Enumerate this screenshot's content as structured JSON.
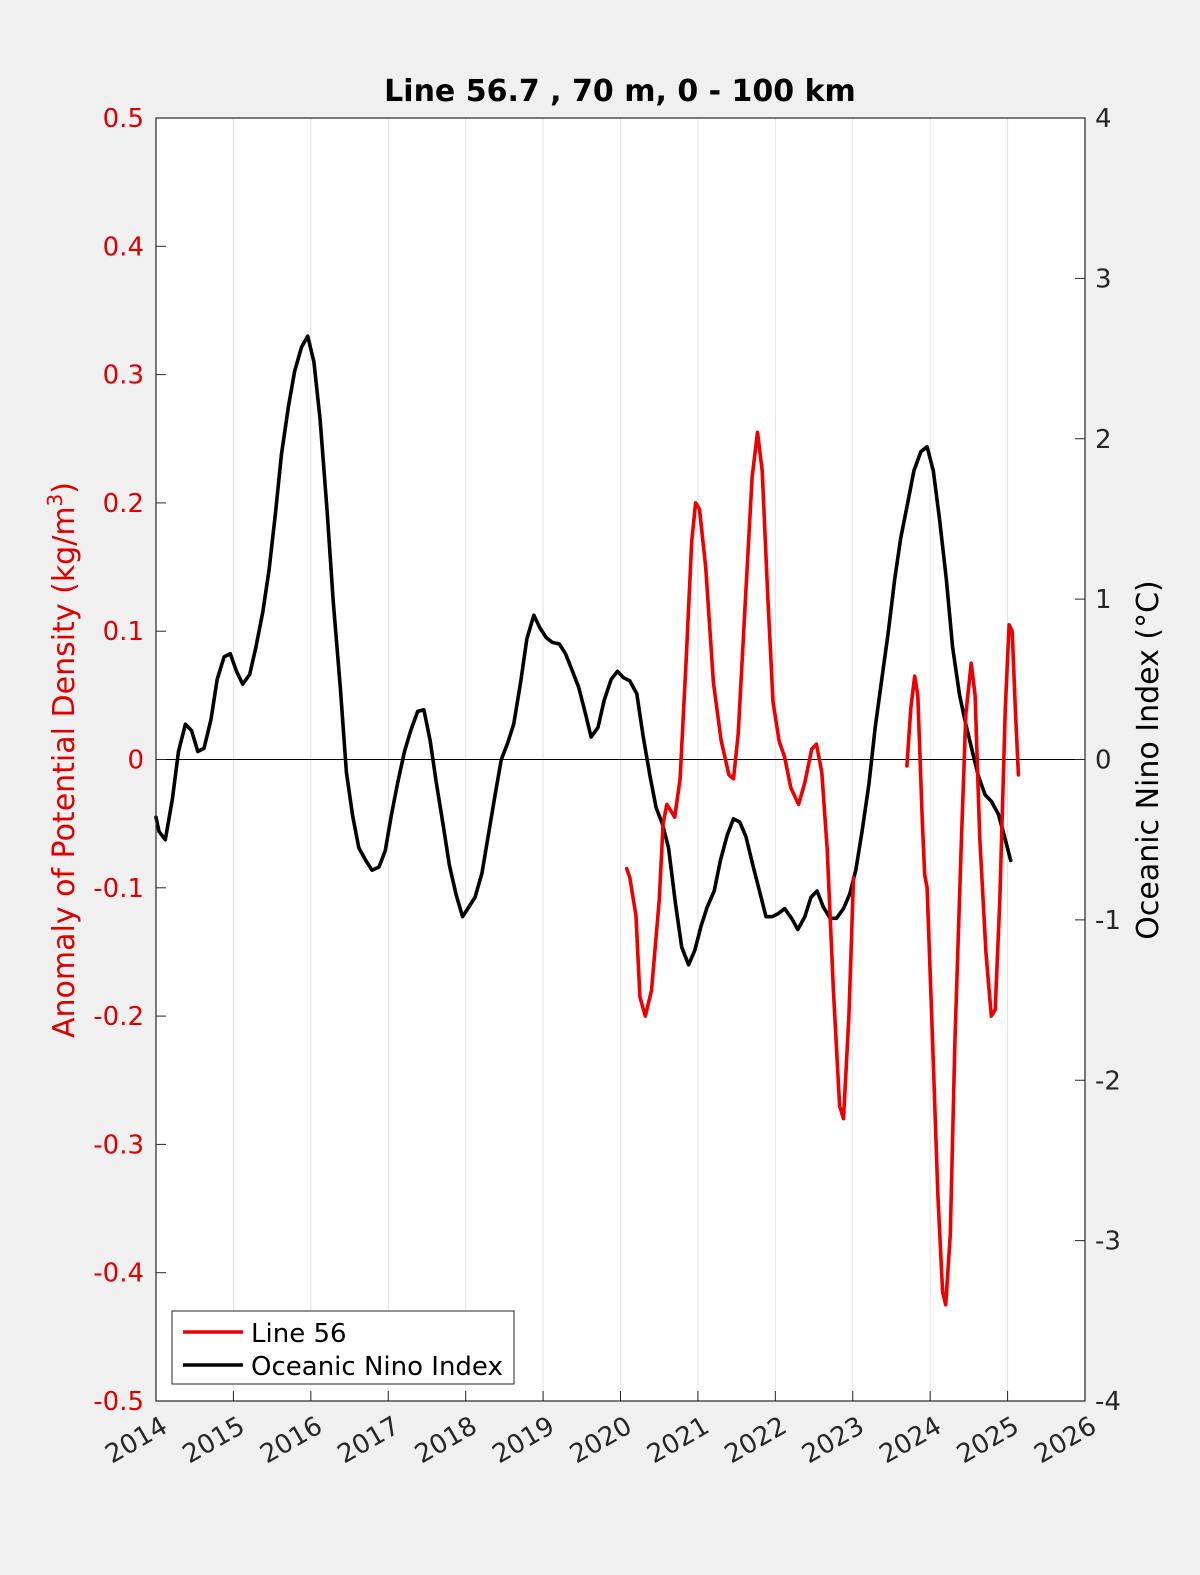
{
  "chart_data": {
    "type": "line",
    "title": "Line 56.7 , 70 m, 0 - 100 km",
    "xlabel": "",
    "ylabel_left": "Anomaly of Potential Density (kg/m",
    "ylabel_left_sup": "3",
    "ylabel_left_close": ")",
    "ylabel_right": "Oceanic Nino Index (°C)",
    "xlim": [
      2014,
      2026
    ],
    "ylim_left": [
      -0.5,
      0.5
    ],
    "ylim_right": [
      -4,
      4
    ],
    "grid": "vertical",
    "legend_position": "bottom-left",
    "x_ticks": [
      "2014",
      "2015",
      "2016",
      "2017",
      "2018",
      "2019",
      "2020",
      "2021",
      "2022",
      "2023",
      "2024",
      "2025",
      "2026"
    ],
    "y_left_ticks": [
      "-0.5",
      "-0.4",
      "-0.3",
      "-0.2",
      "-0.1",
      "0",
      "0.1",
      "0.2",
      "0.3",
      "0.4",
      "0.5"
    ],
    "y_right_ticks": [
      "-4",
      "-3",
      "-2",
      "-1",
      "0",
      "1",
      "2",
      "3",
      "4"
    ],
    "colors": {
      "line56": "#ee0000",
      "oni": "#000000",
      "left_axis": "#dd0000"
    },
    "series": [
      {
        "name": "Line 56",
        "axis": "left",
        "segments": [
          [
            [
              2020.08,
              -0.085
            ],
            [
              2020.12,
              -0.092
            ],
            [
              2020.2,
              -0.122
            ],
            [
              2020.25,
              -0.185
            ],
            [
              2020.32,
              -0.2
            ],
            [
              2020.4,
              -0.18
            ],
            [
              2020.5,
              -0.11
            ],
            [
              2020.55,
              -0.05
            ],
            [
              2020.6,
              -0.035
            ],
            [
              2020.65,
              -0.04
            ],
            [
              2020.7,
              -0.045
            ],
            [
              2020.77,
              -0.015
            ],
            [
              2020.85,
              0.08
            ],
            [
              2020.92,
              0.17
            ],
            [
              2020.97,
              0.2
            ],
            [
              2021.02,
              0.195
            ],
            [
              2021.1,
              0.15
            ],
            [
              2021.2,
              0.06
            ],
            [
              2021.3,
              0.015
            ],
            [
              2021.4,
              -0.012
            ],
            [
              2021.46,
              -0.015
            ],
            [
              2021.52,
              0.02
            ],
            [
              2021.6,
              0.11
            ],
            [
              2021.7,
              0.22
            ],
            [
              2021.77,
              0.255
            ],
            [
              2021.83,
              0.225
            ],
            [
              2021.9,
              0.13
            ],
            [
              2021.97,
              0.045
            ],
            [
              2022.05,
              0.014
            ],
            [
              2022.12,
              0.002
            ],
            [
              2022.2,
              -0.022
            ],
            [
              2022.3,
              -0.035
            ],
            [
              2022.38,
              -0.018
            ],
            [
              2022.47,
              0.008
            ],
            [
              2022.53,
              0.012
            ],
            [
              2022.6,
              -0.01
            ],
            [
              2022.67,
              -0.07
            ],
            [
              2022.75,
              -0.18
            ],
            [
              2022.83,
              -0.27
            ],
            [
              2022.88,
              -0.28
            ],
            [
              2022.95,
              -0.2
            ],
            [
              2023.01,
              -0.092
            ]
          ],
          [
            [
              2023.7,
              -0.005
            ],
            [
              2023.75,
              0.04
            ],
            [
              2023.8,
              0.065
            ],
            [
              2023.84,
              0.05
            ],
            [
              2023.9,
              -0.05
            ],
            [
              2023.93,
              -0.09
            ],
            [
              2023.96,
              -0.1
            ],
            [
              2024.02,
              -0.2
            ],
            [
              2024.1,
              -0.34
            ],
            [
              2024.16,
              -0.415
            ],
            [
              2024.2,
              -0.425
            ],
            [
              2024.26,
              -0.37
            ],
            [
              2024.32,
              -0.22
            ],
            [
              2024.4,
              -0.07
            ],
            [
              2024.46,
              0.035
            ],
            [
              2024.53,
              0.075
            ],
            [
              2024.58,
              0.05
            ],
            [
              2024.64,
              -0.06
            ],
            [
              2024.72,
              -0.15
            ],
            [
              2024.79,
              -0.2
            ],
            [
              2024.84,
              -0.195
            ],
            [
              2024.9,
              -0.11
            ],
            [
              2024.97,
              0.04
            ],
            [
              2025.02,
              0.105
            ],
            [
              2025.06,
              0.1
            ],
            [
              2025.1,
              0.04
            ],
            [
              2025.14,
              -0.012
            ]
          ]
        ]
      },
      {
        "name": "Oceanic Nino Index",
        "axis": "right",
        "segments": [
          [
            [
              2014.0,
              -0.36
            ],
            [
              2014.04,
              -0.45
            ],
            [
              2014.12,
              -0.5
            ],
            [
              2014.21,
              -0.25
            ],
            [
              2014.29,
              0.05
            ],
            [
              2014.38,
              0.22
            ],
            [
              2014.46,
              0.18
            ],
            [
              2014.54,
              0.05
            ],
            [
              2014.62,
              0.07
            ],
            [
              2014.71,
              0.25
            ],
            [
              2014.79,
              0.5
            ],
            [
              2014.88,
              0.64
            ],
            [
              2014.96,
              0.66
            ],
            [
              2015.04,
              0.55
            ],
            [
              2015.12,
              0.47
            ],
            [
              2015.21,
              0.53
            ],
            [
              2015.29,
              0.7
            ],
            [
              2015.38,
              0.92
            ],
            [
              2015.46,
              1.18
            ],
            [
              2015.54,
              1.52
            ],
            [
              2015.62,
              1.9
            ],
            [
              2015.71,
              2.2
            ],
            [
              2015.79,
              2.42
            ],
            [
              2015.88,
              2.57
            ],
            [
              2015.96,
              2.64
            ],
            [
              2016.04,
              2.48
            ],
            [
              2016.12,
              2.12
            ],
            [
              2016.21,
              1.55
            ],
            [
              2016.29,
              0.98
            ],
            [
              2016.38,
              0.45
            ],
            [
              2016.46,
              -0.08
            ],
            [
              2016.54,
              -0.35
            ],
            [
              2016.62,
              -0.55
            ],
            [
              2016.71,
              -0.63
            ],
            [
              2016.79,
              -0.69
            ],
            [
              2016.88,
              -0.67
            ],
            [
              2016.96,
              -0.57
            ],
            [
              2017.04,
              -0.35
            ],
            [
              2017.12,
              -0.15
            ],
            [
              2017.21,
              0.05
            ],
            [
              2017.29,
              0.18
            ],
            [
              2017.38,
              0.3
            ],
            [
              2017.46,
              0.31
            ],
            [
              2017.54,
              0.12
            ],
            [
              2017.62,
              -0.14
            ],
            [
              2017.71,
              -0.41
            ],
            [
              2017.79,
              -0.66
            ],
            [
              2017.88,
              -0.85
            ],
            [
              2017.96,
              -0.98
            ],
            [
              2018.04,
              -0.92
            ],
            [
              2018.12,
              -0.86
            ],
            [
              2018.21,
              -0.71
            ],
            [
              2018.29,
              -0.48
            ],
            [
              2018.38,
              -0.22
            ],
            [
              2018.46,
              0.0
            ],
            [
              2018.54,
              0.1
            ],
            [
              2018.62,
              0.22
            ],
            [
              2018.71,
              0.48
            ],
            [
              2018.79,
              0.75
            ],
            [
              2018.88,
              0.9
            ],
            [
              2018.96,
              0.82
            ],
            [
              2019.04,
              0.76
            ],
            [
              2019.12,
              0.73
            ],
            [
              2019.21,
              0.72
            ],
            [
              2019.29,
              0.66
            ],
            [
              2019.38,
              0.55
            ],
            [
              2019.46,
              0.45
            ],
            [
              2019.54,
              0.3
            ],
            [
              2019.62,
              0.14
            ],
            [
              2019.71,
              0.2
            ],
            [
              2019.79,
              0.37
            ],
            [
              2019.88,
              0.5
            ],
            [
              2019.96,
              0.55
            ],
            [
              2020.04,
              0.51
            ],
            [
              2020.12,
              0.49
            ],
            [
              2020.21,
              0.41
            ],
            [
              2020.29,
              0.15
            ],
            [
              2020.38,
              -0.1
            ],
            [
              2020.46,
              -0.3
            ],
            [
              2020.54,
              -0.4
            ],
            [
              2020.62,
              -0.55
            ],
            [
              2020.71,
              -0.9
            ],
            [
              2020.79,
              -1.17
            ],
            [
              2020.88,
              -1.28
            ],
            [
              2020.96,
              -1.19
            ],
            [
              2021.04,
              -1.04
            ],
            [
              2021.12,
              -0.92
            ],
            [
              2021.21,
              -0.82
            ],
            [
              2021.29,
              -0.63
            ],
            [
              2021.38,
              -0.47
            ],
            [
              2021.46,
              -0.37
            ],
            [
              2021.54,
              -0.39
            ],
            [
              2021.62,
              -0.48
            ],
            [
              2021.71,
              -0.66
            ],
            [
              2021.79,
              -0.81
            ],
            [
              2021.88,
              -0.98
            ],
            [
              2021.96,
              -0.98
            ],
            [
              2022.04,
              -0.96
            ],
            [
              2022.12,
              -0.93
            ],
            [
              2022.21,
              -0.99
            ],
            [
              2022.29,
              -1.06
            ],
            [
              2022.38,
              -0.98
            ],
            [
              2022.46,
              -0.86
            ],
            [
              2022.54,
              -0.82
            ],
            [
              2022.62,
              -0.92
            ],
            [
              2022.71,
              -0.99
            ],
            [
              2022.79,
              -0.99
            ],
            [
              2022.88,
              -0.93
            ],
            [
              2022.96,
              -0.84
            ],
            [
              2023.04,
              -0.69
            ],
            [
              2023.12,
              -0.45
            ],
            [
              2023.21,
              -0.15
            ],
            [
              2023.29,
              0.2
            ],
            [
              2023.38,
              0.52
            ],
            [
              2023.46,
              0.8
            ],
            [
              2023.54,
              1.12
            ],
            [
              2023.62,
              1.38
            ],
            [
              2023.71,
              1.6
            ],
            [
              2023.79,
              1.8
            ],
            [
              2023.88,
              1.92
            ],
            [
              2023.96,
              1.95
            ],
            [
              2024.04,
              1.8
            ],
            [
              2024.12,
              1.5
            ],
            [
              2024.21,
              1.12
            ],
            [
              2024.29,
              0.7
            ],
            [
              2024.38,
              0.4
            ],
            [
              2024.46,
              0.22
            ],
            [
              2024.54,
              0.06
            ],
            [
              2024.62,
              -0.1
            ],
            [
              2024.71,
              -0.22
            ],
            [
              2024.79,
              -0.26
            ],
            [
              2024.88,
              -0.34
            ],
            [
              2024.96,
              -0.48
            ],
            [
              2025.04,
              -0.63
            ]
          ]
        ]
      }
    ]
  },
  "legend": {
    "entries": [
      {
        "label": "Line 56",
        "color": "#ee0000"
      },
      {
        "label": "Oceanic Nino Index",
        "color": "#000000"
      }
    ]
  }
}
